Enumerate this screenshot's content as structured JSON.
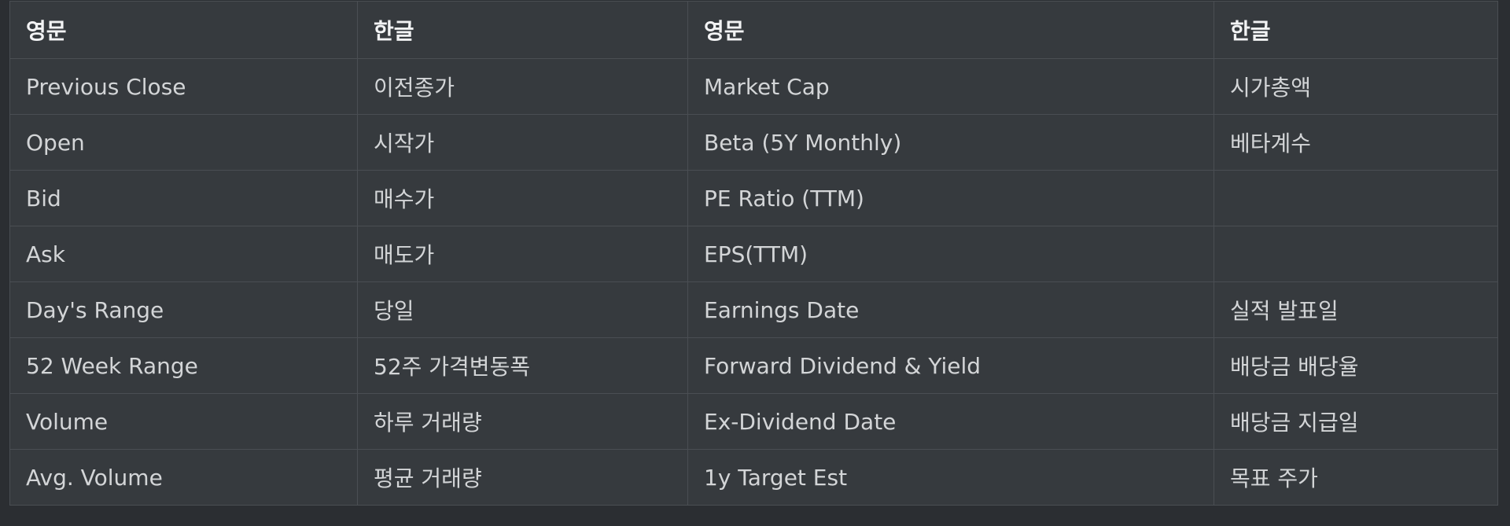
{
  "table": {
    "headers": [
      "영문",
      "한글",
      "영문",
      "한글"
    ],
    "rows": [
      [
        "Previous Close",
        "이전종가",
        "Market Cap",
        "시가총액"
      ],
      [
        "Open",
        "시작가",
        "Beta (5Y Monthly)",
        "베타계수"
      ],
      [
        "Bid",
        "매수가",
        "PE Ratio (TTM)",
        ""
      ],
      [
        "Ask",
        "매도가",
        "EPS(TTM)",
        ""
      ],
      [
        "Day's Range",
        "당일",
        "Earnings Date",
        "실적 발표일"
      ],
      [
        "52 Week Range",
        "52주 가격변동폭",
        "Forward Dividend & Yield",
        "배당금 배당율"
      ],
      [
        "Volume",
        "하루 거래량",
        "Ex-Dividend Date",
        "배당금 지급일"
      ],
      [
        "Avg. Volume",
        "평균 거래량",
        "1y Target Est",
        "목표 주가"
      ]
    ]
  },
  "colors": {
    "page_background": "#2b2e32",
    "table_background": "#363a3e",
    "border": "#4a4e53",
    "header_text": "#f2f3f4",
    "cell_text": "#d3d5d7"
  }
}
